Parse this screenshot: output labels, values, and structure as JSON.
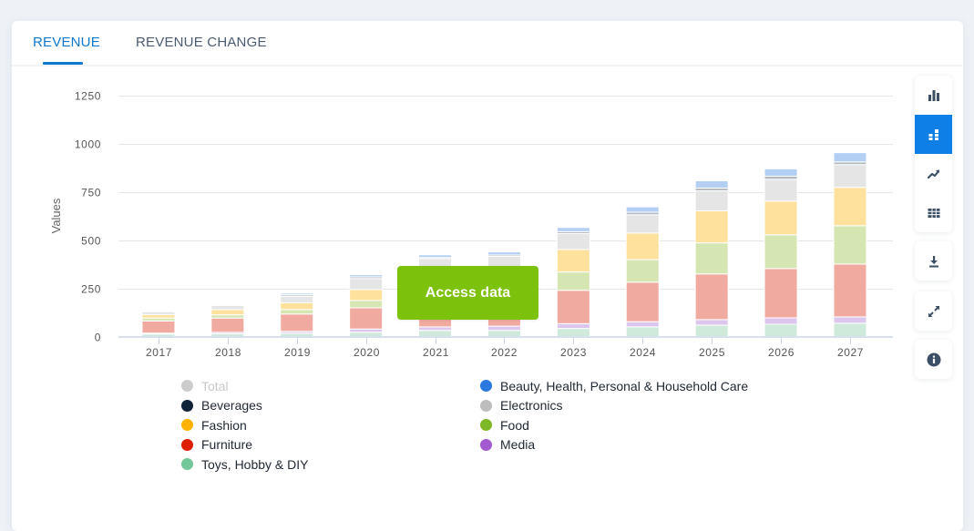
{
  "tabs": [
    {
      "label": "REVENUE",
      "active": true
    },
    {
      "label": "REVENUE CHANGE",
      "active": false
    }
  ],
  "access_button": {
    "label": "Access data",
    "color": "#7cc10b"
  },
  "toolbar": {
    "groups": [
      [
        "bar-chart-icon",
        "stacked-bar-icon",
        "trend-line-icon",
        "table-icon"
      ],
      [
        "download-icon"
      ],
      [
        "fullscreen-icon"
      ],
      [
        "info-icon"
      ]
    ],
    "active": "stacked-bar-icon",
    "accent": "#0d7fe6",
    "icon_color": "#3b4f66"
  },
  "chart_data": {
    "type": "bar",
    "stacked": true,
    "title": "",
    "xlabel": "",
    "ylabel": "Values",
    "ylim": [
      0,
      1250
    ],
    "yticks": [
      0,
      250,
      500,
      750,
      1000,
      1250
    ],
    "grid": true,
    "legend_position": "bottom",
    "categories": [
      "2017",
      "2018",
      "2019",
      "2020",
      "2021",
      "2022",
      "2023",
      "2024",
      "2025",
      "2026",
      "2027"
    ],
    "series": [
      {
        "name": "Toys, Hobby & DIY",
        "color": "#72c899",
        "bar_color": "#cfe9da",
        "values": [
          13,
          14,
          17,
          23,
          32,
          32,
          42,
          50,
          59,
          64,
          69
        ]
      },
      {
        "name": "Media",
        "color": "#a45ad1",
        "bar_color": "#dcc6ee",
        "values": [
          5,
          8,
          10,
          16,
          18,
          22,
          25,
          27,
          29,
          33,
          33
        ]
      },
      {
        "name": "Furniture",
        "color": "#dd1f00",
        "bar_color": "#f0aaa0",
        "values": [
          63,
          74,
          90,
          110,
          128,
          130,
          173,
          205,
          237,
          256,
          274
        ]
      },
      {
        "name": "Food",
        "color": "#7fb827",
        "bar_color": "#d6e6b2",
        "values": [
          15,
          17,
          23,
          38,
          60,
          66,
          95,
          117,
          161,
          175,
          199
        ]
      },
      {
        "name": "Fashion",
        "color": "#ffb300",
        "bar_color": "#fee19c",
        "values": [
          18,
          27,
          36,
          57,
          88,
          90,
          117,
          138,
          166,
          175,
          199
        ]
      },
      {
        "name": "Electronics",
        "color": "#bdbdbd",
        "bar_color": "#e5e5e5",
        "values": [
          15,
          22,
          33,
          57,
          78,
          76,
          82,
          95,
          104,
          113,
          118
        ]
      },
      {
        "name": "Beverages",
        "color": "#0f2339",
        "bar_color": "#b4bac3",
        "values": [
          2,
          2,
          8,
          9,
          6,
          7,
          10,
          13,
          14,
          16,
          14
        ]
      },
      {
        "name": "Beauty, Health, Personal & Household Care",
        "color": "#2b79e0",
        "bar_color": "#b3d0f4",
        "values": [
          3,
          3,
          8,
          11,
          14,
          16,
          22,
          28,
          38,
          38,
          48
        ]
      }
    ],
    "legend": [
      {
        "label": "Total",
        "color": "#cccccc",
        "hidden": true
      },
      {
        "label": "Beverages",
        "color": "#0f2339",
        "hidden": false
      },
      {
        "label": "Fashion",
        "color": "#ffb300",
        "hidden": false
      },
      {
        "label": "Furniture",
        "color": "#dd1f00",
        "hidden": false
      },
      {
        "label": "Toys, Hobby & DIY",
        "color": "#72c899",
        "hidden": false
      },
      {
        "label": "Beauty, Health, Personal & Household Care",
        "color": "#2b79e0",
        "hidden": false
      },
      {
        "label": "Electronics",
        "color": "#bdbdbd",
        "hidden": false
      },
      {
        "label": "Food",
        "color": "#7fb827",
        "hidden": false
      },
      {
        "label": "Media",
        "color": "#a45ad1",
        "hidden": false
      }
    ]
  }
}
